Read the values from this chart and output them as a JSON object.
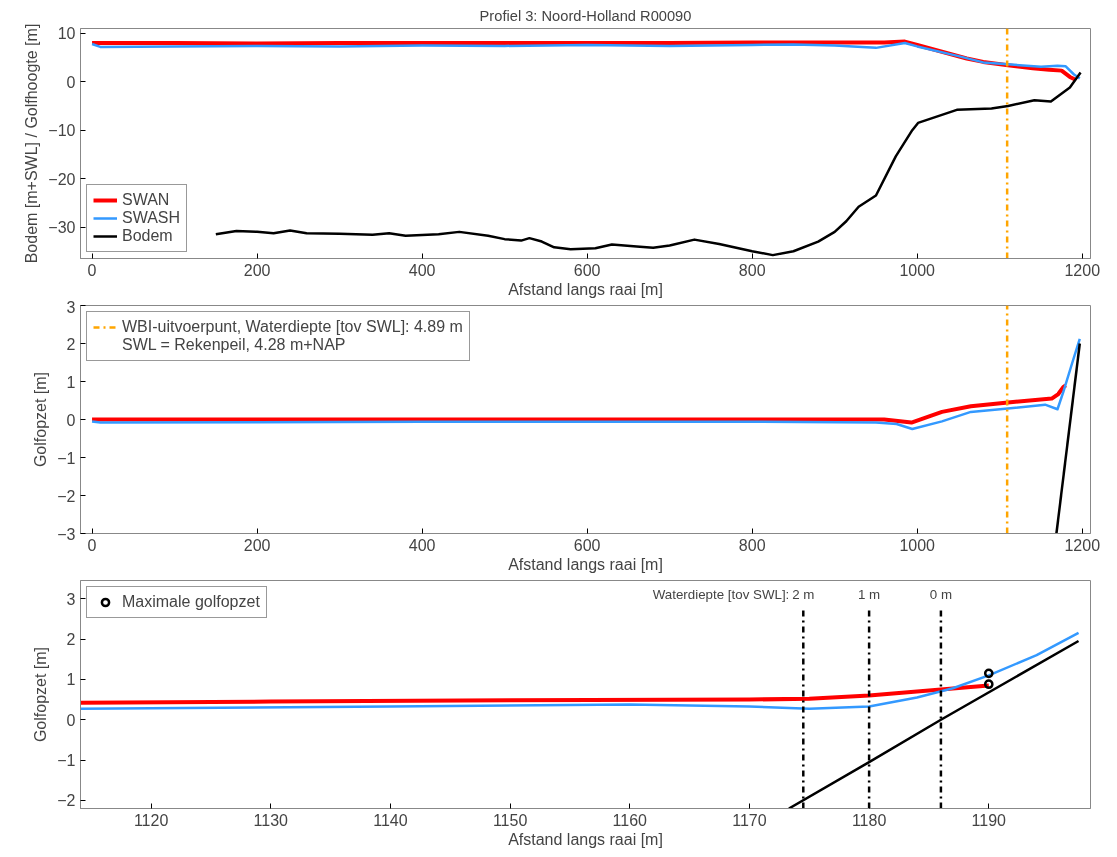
{
  "chart_data": [
    {
      "type": "line",
      "title": "Profiel 3: Noord-Holland R00090",
      "xlabel": "Afstand langs raai [m]",
      "ylabel": "Bodem [m+SWL] / Golfhoogte [m]",
      "xlim": [
        -14,
        1210
      ],
      "ylim": [
        -36.5,
        11
      ],
      "xticks": [
        0,
        200,
        400,
        600,
        800,
        1000,
        1200
      ],
      "yticks": [
        -30,
        -20,
        -10,
        0,
        10
      ],
      "grid": false,
      "legend": "bottom left",
      "line_style": "solid",
      "marker": "none",
      "series": [
        {
          "name": "SWAN",
          "color": "#ff0000",
          "x": [
            0,
            100,
            200,
            300,
            400,
            500,
            600,
            700,
            800,
            900,
            960,
            985,
            1000,
            1030,
            1060,
            1080,
            1110,
            1140,
            1160,
            1175,
            1185,
            1192
          ],
          "values": [
            8,
            8,
            7.9,
            8,
            8,
            8,
            8,
            8,
            8.1,
            8.1,
            8.1,
            8.3,
            7.6,
            6.2,
            4.8,
            4.1,
            3.4,
            2.8,
            2.5,
            2.3,
            1.0,
            0.4
          ]
        },
        {
          "name": "SWASH",
          "color": "#3399ff",
          "x": [
            0,
            10,
            100,
            200,
            300,
            400,
            500,
            600,
            700,
            800,
            850,
            900,
            950,
            985,
            1000,
            1050,
            1080,
            1110,
            1150,
            1170,
            1180,
            1190,
            1197
          ],
          "values": [
            7.8,
            7.2,
            7.3,
            7.4,
            7.3,
            7.5,
            7.4,
            7.6,
            7.4,
            7.6,
            7.7,
            7.5,
            7.0,
            8.0,
            7.3,
            5.3,
            4.0,
            3.6,
            3.1,
            3.3,
            3.2,
            1.5,
            0.7
          ]
        },
        {
          "name": "Bodem",
          "color": "#000000",
          "x": [
            150,
            175,
            200,
            220,
            240,
            260,
            300,
            340,
            360,
            380,
            420,
            445,
            480,
            500,
            520,
            530,
            545,
            560,
            580,
            610,
            630,
            660,
            680,
            700,
            730,
            760,
            800,
            825,
            850,
            880,
            900,
            914,
            929,
            950,
            974,
            994,
            1001,
            1048,
            1090,
            1110,
            1142,
            1162,
            1185,
            1198
          ],
          "values": [
            -31.5,
            -30.8,
            -31,
            -31.3,
            -30.7,
            -31.3,
            -31.4,
            -31.6,
            -31.3,
            -31.8,
            -31.5,
            -31,
            -31.8,
            -32.5,
            -32.8,
            -32.3,
            -33,
            -34.2,
            -34.6,
            -34.4,
            -33.6,
            -34,
            -34.3,
            -33.8,
            -32.6,
            -33.5,
            -35,
            -35.8,
            -35,
            -33,
            -31,
            -28.8,
            -25.8,
            -23.5,
            -15.4,
            -10,
            -8.5,
            -5.8,
            -5.5,
            -5,
            -3.8,
            -4.1,
            -1.2,
            1.9
          ]
        }
      ],
      "ref_lines": [
        {
          "axis": "x",
          "value": 1109,
          "color": "#ffa500",
          "line_style": "dashed"
        }
      ]
    },
    {
      "type": "line",
      "xlabel": "Afstand langs raai [m]",
      "ylabel": "Golfopzet [m]",
      "xlim": [
        -14,
        1210
      ],
      "ylim": [
        -3,
        3
      ],
      "xticks": [
        0,
        200,
        400,
        600,
        800,
        1000,
        1200
      ],
      "yticks": [
        -3,
        -2,
        -1,
        0,
        1,
        2,
        3
      ],
      "grid": false,
      "legend": "top left",
      "line_style": "solid",
      "marker": "none",
      "series": [
        {
          "color": "#ff0000",
          "x": [
            0,
            200,
            400,
            600,
            800,
            900,
            960,
            993,
            1030,
            1065,
            1110,
            1163,
            1171,
            1177,
            1180
          ],
          "values": [
            0,
            0,
            0,
            0,
            0,
            0,
            0,
            -0.08,
            0.2,
            0.35,
            0.45,
            0.55,
            0.67,
            0.85,
            0.9
          ]
        },
        {
          "color": "#3399ff",
          "x": [
            0,
            10,
            200,
            400,
            600,
            800,
            950,
            975,
            994,
            1030,
            1065,
            1110,
            1155,
            1170,
            1177,
            1188,
            1197
          ],
          "values": [
            -0.05,
            -0.08,
            -0.07,
            -0.06,
            -0.06,
            -0.06,
            -0.08,
            -0.12,
            -0.25,
            -0.05,
            0.2,
            0.29,
            0.39,
            0.27,
            0.72,
            1.5,
            2.12
          ]
        },
        {
          "color": "#000000",
          "x": [
            1168.7,
            1197
          ],
          "values": [
            -3,
            2.0
          ]
        },
        {
          "name": "WBI-uitvoerpunt, Waterdiepte [tov SWL]: 4.89 m",
          "color": "#ffa500",
          "line_style": "dashed",
          "x": [
            1109,
            1109
          ],
          "values": [
            -3,
            3
          ]
        }
      ],
      "annotations": [
        "SWL = Rekenpeil, 4.28 m+NAP"
      ]
    },
    {
      "type": "line",
      "xlabel": "Afstand langs raai [m]",
      "ylabel": "Golfopzet [m]",
      "xlim": [
        1114.1,
        1198.5
      ],
      "ylim": [
        -2.2,
        3.45
      ],
      "xticks": [
        1120,
        1130,
        1140,
        1150,
        1160,
        1170,
        1180,
        1190
      ],
      "yticks": [
        -2,
        -1,
        0,
        1,
        2,
        3
      ],
      "grid": false,
      "legend": "top left",
      "line_style": "solid",
      "series": [
        {
          "color": "#ff0000",
          "x": [
            1114.1,
            1130,
            1150,
            1170,
            1175,
            1180,
            1186,
            1190
          ],
          "values": [
            0.42,
            0.45,
            0.48,
            0.5,
            0.52,
            0.6,
            0.75,
            0.85
          ]
        },
        {
          "color": "#3399ff",
          "x": [
            1114.1,
            1140,
            1160,
            1170,
            1175,
            1180,
            1184,
            1187,
            1190,
            1194,
            1197.5
          ],
          "values": [
            0.27,
            0.33,
            0.38,
            0.33,
            0.27,
            0.33,
            0.55,
            0.78,
            1.1,
            1.6,
            2.15
          ]
        },
        {
          "color": "#000000",
          "x": [
            1173.3,
            1180,
            1186,
            1197.5
          ],
          "values": [
            -2.2,
            -1.05,
            0,
            1.95
          ]
        },
        {
          "type": "scatter",
          "name": "Maximale golfopzet",
          "color": "#000000",
          "marker": "circle",
          "x": [
            1190,
            1190
          ],
          "values": [
            1.15,
            0.88
          ]
        }
      ],
      "ref_lines": [
        {
          "axis": "x",
          "value": 1174.5,
          "color": "#000000",
          "line_style": "dashed",
          "label": "2 m"
        },
        {
          "axis": "x",
          "value": 1180,
          "color": "#000000",
          "line_style": "dashed",
          "label": "1 m"
        },
        {
          "axis": "x",
          "value": 1186,
          "color": "#000000",
          "line_style": "dashed",
          "label": "0 m"
        }
      ],
      "annotations": [
        "Waterdiepte [tov SWL]:"
      ]
    }
  ]
}
